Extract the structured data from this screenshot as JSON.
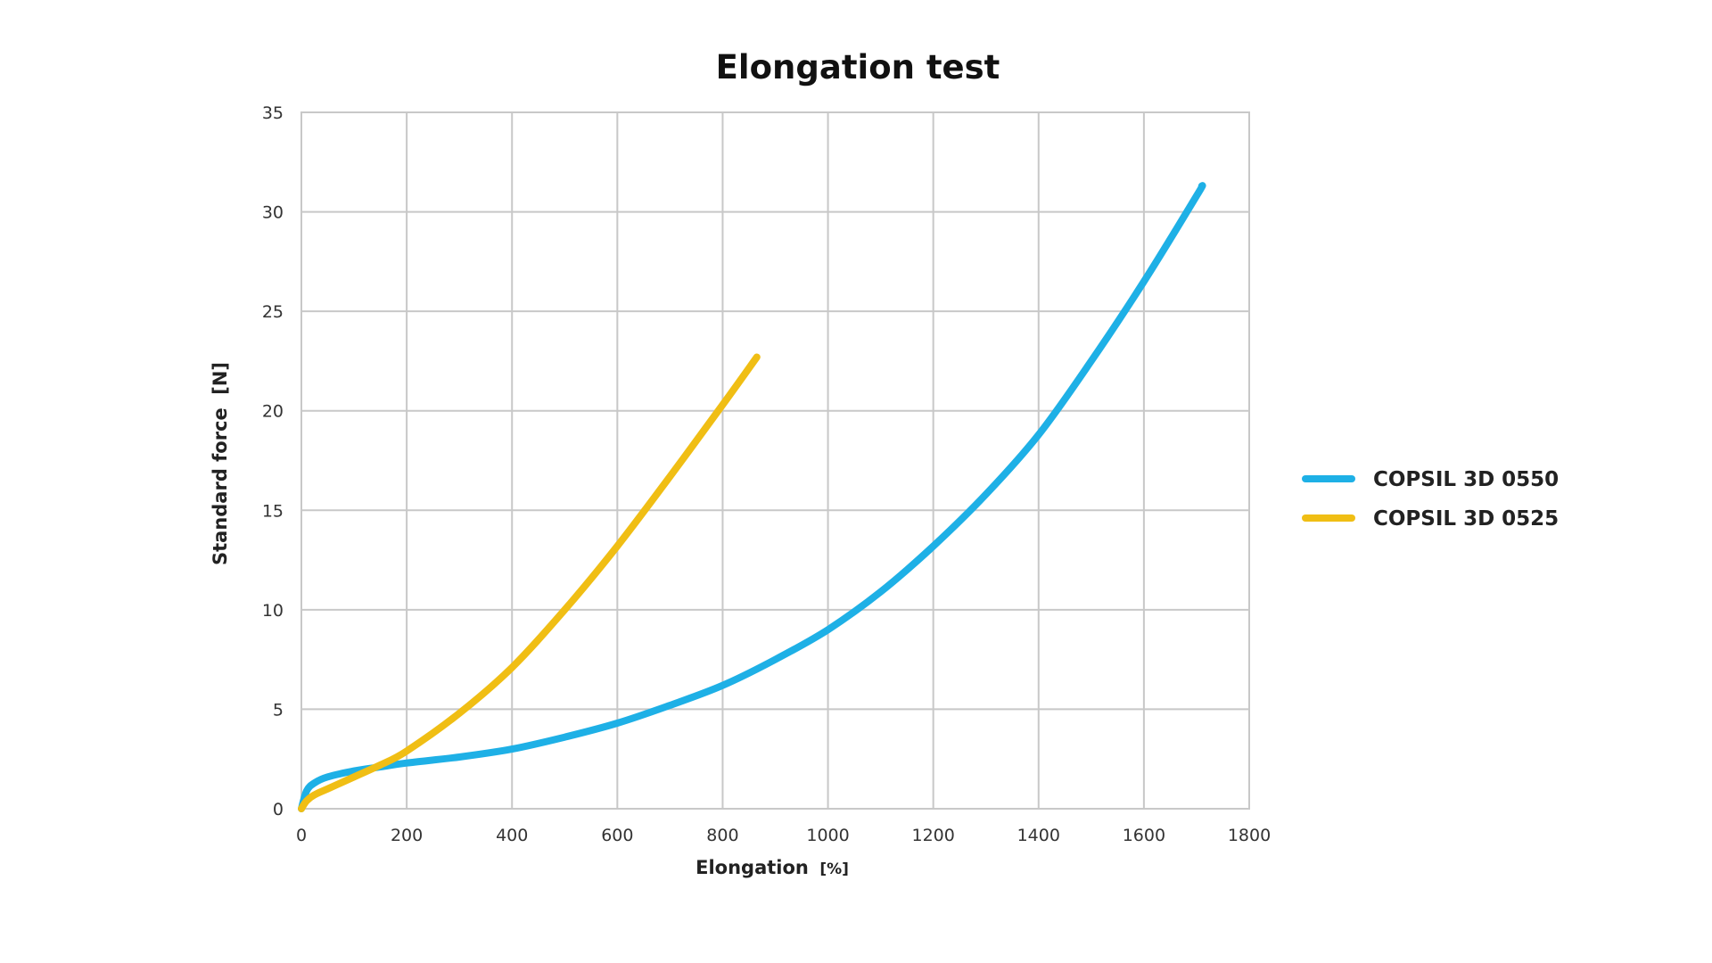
{
  "chart_data": {
    "type": "line",
    "title": "Elongation test",
    "xlabel": "Elongation",
    "xunit": "[%]",
    "ylabel": "Standard force",
    "yunit": "[N]",
    "xlim": [
      0,
      1800
    ],
    "ylim": [
      0,
      35
    ],
    "xticks": [
      0,
      200,
      400,
      600,
      800,
      1000,
      1200,
      1400,
      1600,
      1800
    ],
    "yticks": [
      0,
      5,
      10,
      15,
      20,
      25,
      30,
      35
    ],
    "grid": true,
    "legend_position": "right",
    "series": [
      {
        "name": "COPSIL 3D 0550",
        "color": "#1eb0e6",
        "x": [
          0,
          10,
          25,
          50,
          100,
          150,
          200,
          300,
          400,
          500,
          600,
          700,
          800,
          900,
          1000,
          1100,
          1200,
          1300,
          1400,
          1500,
          1600,
          1700,
          1710
        ],
        "y": [
          0,
          0.9,
          1.3,
          1.6,
          1.9,
          2.1,
          2.3,
          2.6,
          3.0,
          3.6,
          4.3,
          5.2,
          6.2,
          7.5,
          9.0,
          10.9,
          13.2,
          15.8,
          18.8,
          22.5,
          26.5,
          30.8,
          31.3
        ]
      },
      {
        "name": "COPSIL 3D 0525",
        "color": "#f0be14",
        "x": [
          0,
          10,
          25,
          50,
          100,
          150,
          200,
          300,
          400,
          500,
          600,
          700,
          800,
          865
        ],
        "y": [
          0,
          0.4,
          0.7,
          1.0,
          1.6,
          2.2,
          2.9,
          4.8,
          7.1,
          10.0,
          13.2,
          16.7,
          20.3,
          22.7
        ]
      }
    ]
  }
}
